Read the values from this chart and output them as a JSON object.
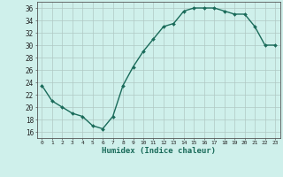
{
  "x": [
    0,
    1,
    2,
    3,
    4,
    5,
    6,
    7,
    8,
    9,
    10,
    11,
    12,
    13,
    14,
    15,
    16,
    17,
    18,
    19,
    20,
    21,
    22,
    23
  ],
  "y": [
    23.5,
    21.0,
    20.0,
    19.0,
    18.5,
    17.0,
    16.5,
    18.5,
    23.5,
    26.5,
    29.0,
    31.0,
    33.0,
    33.5,
    35.5,
    36.0,
    36.0,
    36.0,
    35.5,
    35.0,
    35.0,
    33.0,
    30.0,
    30.0
  ],
  "line_color": "#1a6b5a",
  "marker": "D",
  "marker_size": 2.0,
  "bg_color": "#cff0eb",
  "grid_color": "#b0c8c4",
  "xlabel": "Humidex (Indice chaleur)",
  "xlim": [
    -0.5,
    23.5
  ],
  "ylim": [
    15,
    37
  ],
  "yticks": [
    16,
    18,
    20,
    22,
    24,
    26,
    28,
    30,
    32,
    34,
    36
  ],
  "xticks": [
    0,
    1,
    2,
    3,
    4,
    5,
    6,
    7,
    8,
    9,
    10,
    11,
    12,
    13,
    14,
    15,
    16,
    17,
    18,
    19,
    20,
    21,
    22,
    23
  ],
  "xtick_labels": [
    "0",
    "1",
    "2",
    "3",
    "4",
    "5",
    "6",
    "7",
    "8",
    "9",
    "10",
    "11",
    "12",
    "13",
    "14",
    "15",
    "16",
    "17",
    "18",
    "19",
    "20",
    "21",
    "22",
    "23"
  ],
  "linewidth": 1.0
}
